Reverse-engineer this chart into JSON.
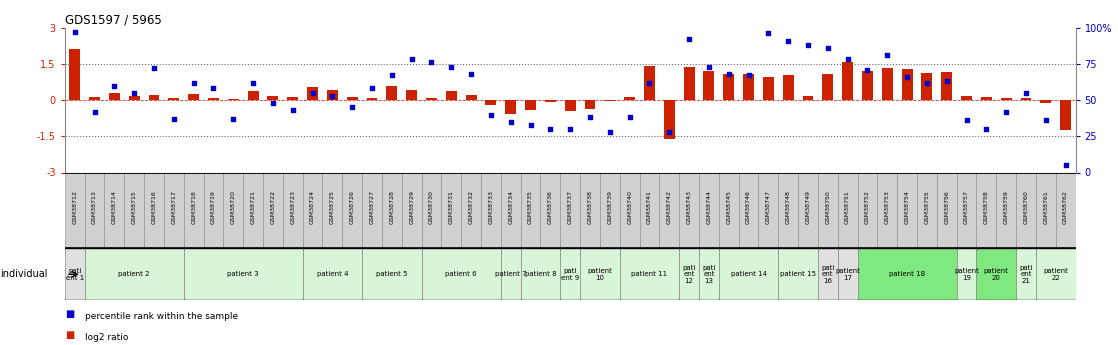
{
  "title": "GDS1597 / 5965",
  "samples": [
    "GSM38712",
    "GSM38713",
    "GSM38714",
    "GSM38715",
    "GSM38716",
    "GSM38717",
    "GSM38718",
    "GSM38719",
    "GSM38720",
    "GSM38721",
    "GSM38722",
    "GSM38723",
    "GSM38724",
    "GSM38725",
    "GSM38726",
    "GSM38727",
    "GSM38728",
    "GSM38729",
    "GSM38730",
    "GSM38731",
    "GSM38732",
    "GSM38733",
    "GSM38734",
    "GSM38735",
    "GSM38736",
    "GSM38737",
    "GSM38738",
    "GSM38739",
    "GSM38740",
    "GSM38741",
    "GSM38742",
    "GSM38743",
    "GSM38744",
    "GSM38745",
    "GSM38746",
    "GSM38747",
    "GSM38748",
    "GSM38749",
    "GSM38750",
    "GSM38751",
    "GSM38752",
    "GSM38753",
    "GSM38754",
    "GSM38755",
    "GSM38756",
    "GSM38757",
    "GSM38758",
    "GSM38759",
    "GSM38760",
    "GSM38761",
    "GSM38762"
  ],
  "log2_ratio": [
    2.1,
    0.12,
    0.28,
    0.15,
    0.22,
    0.07,
    0.26,
    0.08,
    0.06,
    0.38,
    0.15,
    0.12,
    0.52,
    0.42,
    0.12,
    0.08,
    0.57,
    0.42,
    0.08,
    0.37,
    0.22,
    -0.22,
    -0.57,
    -0.42,
    -0.08,
    -0.47,
    -0.37,
    -0.05,
    0.12,
    1.42,
    -1.62,
    1.37,
    1.22,
    1.07,
    1.07,
    0.97,
    1.02,
    0.18,
    1.07,
    1.57,
    1.22,
    1.32,
    1.27,
    1.12,
    1.17,
    0.17,
    0.12,
    0.07,
    0.07,
    -0.12,
    -1.22
  ],
  "percentile_rank": [
    97,
    42,
    60,
    55,
    72,
    37,
    62,
    58,
    37,
    62,
    48,
    43,
    55,
    53,
    45,
    58,
    67,
    78,
    76,
    73,
    68,
    40,
    35,
    33,
    30,
    30,
    38,
    28,
    38,
    62,
    28,
    92,
    73,
    68,
    67,
    96,
    91,
    88,
    86,
    78,
    71,
    81,
    66,
    62,
    63,
    36,
    30,
    42,
    55,
    36,
    5
  ],
  "patient_groups": [
    {
      "label": "pati\nent 1",
      "start": 0,
      "end": 0,
      "color": "#e0e0e0"
    },
    {
      "label": "patient 2",
      "start": 1,
      "end": 5,
      "color": "#d8f5d8"
    },
    {
      "label": "patient 3",
      "start": 6,
      "end": 11,
      "color": "#d8f5d8"
    },
    {
      "label": "patient 4",
      "start": 12,
      "end": 14,
      "color": "#d8f5d8"
    },
    {
      "label": "patient 5",
      "start": 15,
      "end": 17,
      "color": "#d8f5d8"
    },
    {
      "label": "patient 6",
      "start": 18,
      "end": 21,
      "color": "#d8f5d8"
    },
    {
      "label": "patient 7",
      "start": 22,
      "end": 22,
      "color": "#d8f5d8"
    },
    {
      "label": "patient 8",
      "start": 23,
      "end": 24,
      "color": "#d8f5d8"
    },
    {
      "label": "pati\nent 9",
      "start": 25,
      "end": 25,
      "color": "#d8f5d8"
    },
    {
      "label": "patient\n10",
      "start": 26,
      "end": 27,
      "color": "#d8f5d8"
    },
    {
      "label": "patient 11",
      "start": 28,
      "end": 30,
      "color": "#d8f5d8"
    },
    {
      "label": "pati\nent\n12",
      "start": 31,
      "end": 31,
      "color": "#d8f5d8"
    },
    {
      "label": "pati\nent\n13",
      "start": 32,
      "end": 32,
      "color": "#d8f5d8"
    },
    {
      "label": "patient 14",
      "start": 33,
      "end": 35,
      "color": "#d8f5d8"
    },
    {
      "label": "patient 15",
      "start": 36,
      "end": 37,
      "color": "#d8f5d8"
    },
    {
      "label": "pati\nent\n16",
      "start": 38,
      "end": 38,
      "color": "#e0e0e0"
    },
    {
      "label": "patient\n17",
      "start": 39,
      "end": 39,
      "color": "#e0e0e0"
    },
    {
      "label": "patient 18",
      "start": 40,
      "end": 44,
      "color": "#80e880"
    },
    {
      "label": "patient\n19",
      "start": 45,
      "end": 45,
      "color": "#d8f5d8"
    },
    {
      "label": "patient\n20",
      "start": 46,
      "end": 47,
      "color": "#80e880"
    },
    {
      "label": "pati\nent\n21",
      "start": 48,
      "end": 48,
      "color": "#d8f5d8"
    },
    {
      "label": "patient\n22",
      "start": 49,
      "end": 50,
      "color": "#d8f5d8"
    }
  ],
  "bar_color": "#cc2200",
  "dot_color": "#0000cc",
  "zero_line_color": "#cc0000",
  "sample_box_color": "#d0d0d0",
  "ylim": [
    -3,
    3
  ],
  "y2lim": [
    0,
    100
  ],
  "yticks_left": [
    -3,
    -1.5,
    0,
    1.5,
    3
  ],
  "yticks_right": [
    0,
    25,
    50,
    75,
    100
  ],
  "hline_vals": [
    -1.5,
    1.5
  ],
  "bg_color": "#ffffff"
}
